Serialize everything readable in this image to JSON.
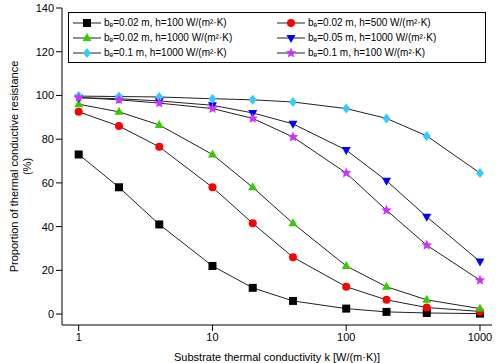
{
  "chart_data": {
    "type": "line",
    "x_label": "Substrate thermal conductivity k  [W/(m·K)]",
    "y_label": "Proportion of thermal conductive resistance (%)",
    "x": [
      1,
      2,
      4,
      10,
      20,
      40,
      100,
      200,
      400,
      1000
    ],
    "series": [
      {
        "name": "bₑ=0.02 m,  h=100 W/(m²·K)",
        "color": "#000000",
        "marker": "square",
        "values": [
          73,
          58,
          41,
          22,
          12,
          6,
          2.5,
          1,
          0.5,
          0.2
        ]
      },
      {
        "name": "bₑ=0.02 m,  h=500 W/(m²·K)",
        "color": "#ff0000",
        "marker": "circle",
        "values": [
          92.5,
          86,
          76.5,
          58,
          41.5,
          26,
          12.5,
          6.5,
          3,
          1.2
        ]
      },
      {
        "name": "bₑ=0.02 m,  h=1000 W/(m²·K)",
        "color": "#33cc00",
        "marker": "triangle",
        "values": [
          96,
          92.5,
          86.5,
          73,
          58,
          41.5,
          22,
          12.5,
          6.5,
          2.5
        ]
      },
      {
        "name": "bₑ=0.05 m,  h=1000 W/(m²·K)",
        "color": "#0000ff",
        "marker": "triangle-down",
        "values": [
          99,
          98.5,
          97.5,
          95.5,
          92,
          87,
          75,
          61,
          44.5,
          24
        ]
      },
      {
        "name": "bₑ=0.1 m,  h=1000 W/(m²·K)",
        "color": "#33ccff",
        "marker": "diamond",
        "values": [
          99.7,
          99.5,
          99.3,
          98.5,
          98,
          97,
          94,
          89.5,
          81.5,
          64.5
        ]
      },
      {
        "name": "bₑ=0.1 m,  h=100 W/(m²·K)",
        "color": "#cc33ff",
        "marker": "star",
        "values": [
          99,
          98,
          96.5,
          94,
          89.5,
          81,
          64.5,
          47.5,
          31.5,
          15.5
        ]
      }
    ],
    "xlim": [
      0.75,
      1230
    ],
    "xticks": [
      1,
      10,
      100,
      1000
    ],
    "ylim": [
      -5,
      140
    ],
    "yticks": [
      0,
      20,
      40,
      60,
      80,
      100,
      120,
      140
    ],
    "log": "x",
    "legend": "upper center",
    "grid": false
  }
}
